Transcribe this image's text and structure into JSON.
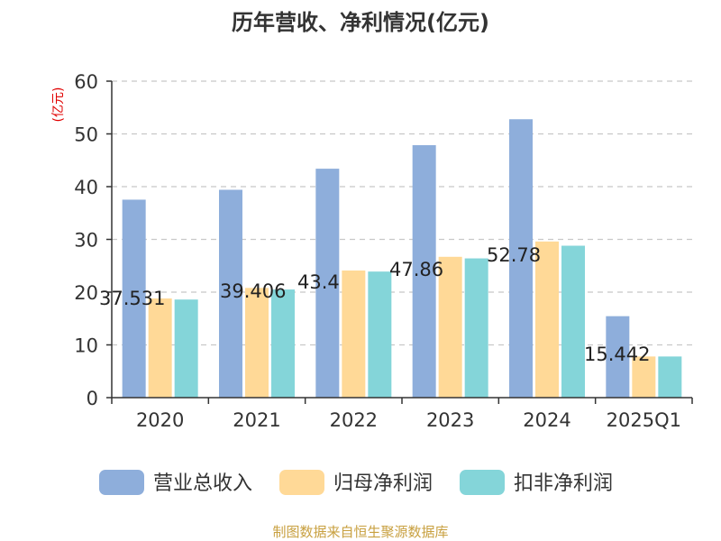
{
  "chart_data": {
    "type": "bar",
    "title": "历年营收、净利情况(亿元)",
    "ylabel": "(亿元)",
    "xlabel": "",
    "ylim": [
      0,
      60
    ],
    "yticks": [
      0,
      10,
      20,
      30,
      40,
      50,
      60
    ],
    "grid": true,
    "legend_position": "bottom",
    "categories": [
      "2020",
      "2021",
      "2022",
      "2023",
      "2024",
      "2025Q1"
    ],
    "series": [
      {
        "name": "营业总收入",
        "color": "#8eaedb",
        "values": [
          37.531,
          39.406,
          43.4,
          47.86,
          52.78,
          15.442
        ]
      },
      {
        "name": "归母净利润",
        "color": "#ffd997",
        "values": [
          18.8,
          20.8,
          24.1,
          26.7,
          29.6,
          7.8
        ]
      },
      {
        "name": "扣非净利润",
        "color": "#84d5d9",
        "values": [
          18.6,
          20.5,
          23.9,
          26.4,
          28.8,
          7.8
        ]
      }
    ],
    "data_labels": [
      {
        "category": "2020",
        "text": "37.531"
      },
      {
        "category": "2021",
        "text": "39.406"
      },
      {
        "category": "2022",
        "text": "43.4"
      },
      {
        "category": "2023",
        "text": "47.86"
      },
      {
        "category": "2024",
        "text": "52.78"
      },
      {
        "category": "2025Q1",
        "text": "15.442"
      }
    ]
  },
  "footer": {
    "source": "制图数据来自恒生聚源数据库"
  },
  "colors": {
    "axis": "#333333",
    "grid": "#c8c8c8",
    "title": "#333333",
    "ylabel": "#e00000",
    "footer": "#c8a040"
  }
}
